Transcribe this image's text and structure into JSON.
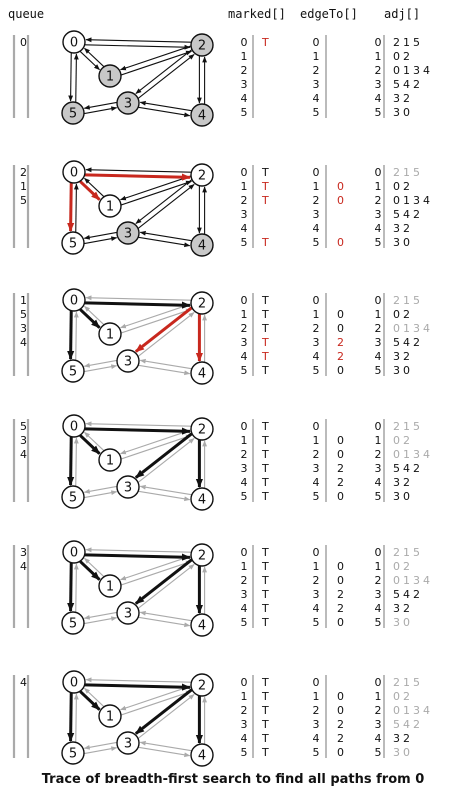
{
  "headers": {
    "queue": "queue",
    "marked": "marked[]",
    "edgeTo": "edgeTo[]",
    "adj": "adj[]"
  },
  "caption": "Trace of breadth-first search to find all paths from 0",
  "colors": {
    "black": "#111111",
    "gray": "#aaaaaa",
    "red": "#c8281e",
    "node_fill_gray": "#c8c8c8",
    "node_fill": "#ffffff"
  },
  "vertices": [
    "0",
    "1",
    "2",
    "3",
    "4",
    "5"
  ],
  "adj": [
    [
      "2",
      "1",
      "5"
    ],
    [
      "0",
      "2"
    ],
    [
      "0",
      "1",
      "3",
      "4"
    ],
    [
      "5",
      "4",
      "2"
    ],
    [
      "3",
      "2"
    ],
    [
      "3",
      "0"
    ]
  ],
  "steps": [
    {
      "queue": [
        "0"
      ],
      "marked": [
        "T",
        "",
        "",
        "",
        "",
        ""
      ],
      "marked_red": [
        true,
        false,
        false,
        false,
        false,
        false
      ],
      "edgeTo": [
        "",
        "",
        "",
        "",
        "",
        ""
      ],
      "edgeTo_red": [
        false,
        false,
        false,
        false,
        false,
        false
      ],
      "adj_gray": [
        false,
        false,
        false,
        false,
        false,
        false
      ],
      "gray_nodes": [
        "1",
        "2",
        "3",
        "5",
        "4"
      ],
      "tree_edges": [],
      "new_edges": []
    },
    {
      "queue": [
        "2",
        "1",
        "5"
      ],
      "marked": [
        "T",
        "T",
        "T",
        "",
        "",
        "T"
      ],
      "marked_red": [
        false,
        true,
        true,
        false,
        false,
        true
      ],
      "edgeTo": [
        "",
        "0",
        "0",
        "",
        "",
        "0"
      ],
      "edgeTo_red": [
        false,
        true,
        true,
        false,
        false,
        true
      ],
      "adj_gray": [
        true,
        false,
        false,
        false,
        false,
        false
      ],
      "gray_nodes": [
        "3",
        "4"
      ],
      "tree_edges": [],
      "new_edges": [
        [
          "0",
          "2"
        ],
        [
          "0",
          "1"
        ],
        [
          "0",
          "5"
        ]
      ]
    },
    {
      "queue": [
        "1",
        "5",
        "3",
        "4"
      ],
      "marked": [
        "T",
        "T",
        "T",
        "T",
        "T",
        "T"
      ],
      "marked_red": [
        false,
        false,
        false,
        true,
        true,
        false
      ],
      "edgeTo": [
        "",
        "0",
        "0",
        "2",
        "2",
        "0"
      ],
      "edgeTo_red": [
        false,
        false,
        false,
        true,
        true,
        false
      ],
      "adj_gray": [
        true,
        false,
        true,
        false,
        false,
        false
      ],
      "gray_nodes": [],
      "tree_edges": [
        [
          "0",
          "2"
        ],
        [
          "0",
          "1"
        ],
        [
          "0",
          "5"
        ]
      ],
      "new_edges": [
        [
          "2",
          "3"
        ],
        [
          "2",
          "4"
        ]
      ]
    },
    {
      "queue": [
        "5",
        "3",
        "4"
      ],
      "marked": [
        "T",
        "T",
        "T",
        "T",
        "T",
        "T"
      ],
      "marked_red": [
        false,
        false,
        false,
        false,
        false,
        false
      ],
      "edgeTo": [
        "",
        "0",
        "0",
        "2",
        "2",
        "0"
      ],
      "edgeTo_red": [
        false,
        false,
        false,
        false,
        false,
        false
      ],
      "adj_gray": [
        true,
        true,
        true,
        false,
        false,
        false
      ],
      "gray_nodes": [],
      "tree_edges": [
        [
          "0",
          "2"
        ],
        [
          "0",
          "1"
        ],
        [
          "0",
          "5"
        ],
        [
          "2",
          "3"
        ],
        [
          "2",
          "4"
        ]
      ],
      "new_edges": []
    },
    {
      "queue": [
        "3",
        "4"
      ],
      "marked": [
        "T",
        "T",
        "T",
        "T",
        "T",
        "T"
      ],
      "marked_red": [
        false,
        false,
        false,
        false,
        false,
        false
      ],
      "edgeTo": [
        "",
        "0",
        "0",
        "2",
        "2",
        "0"
      ],
      "edgeTo_red": [
        false,
        false,
        false,
        false,
        false,
        false
      ],
      "adj_gray": [
        true,
        true,
        true,
        false,
        false,
        true
      ],
      "gray_nodes": [],
      "tree_edges": [
        [
          "0",
          "2"
        ],
        [
          "0",
          "1"
        ],
        [
          "0",
          "5"
        ],
        [
          "2",
          "3"
        ],
        [
          "2",
          "4"
        ]
      ],
      "new_edges": []
    },
    {
      "queue": [
        "4"
      ],
      "marked": [
        "T",
        "T",
        "T",
        "T",
        "T",
        "T"
      ],
      "marked_red": [
        false,
        false,
        false,
        false,
        false,
        false
      ],
      "edgeTo": [
        "",
        "0",
        "0",
        "2",
        "2",
        "0"
      ],
      "edgeTo_red": [
        false,
        false,
        false,
        false,
        false,
        false
      ],
      "adj_gray": [
        true,
        true,
        true,
        true,
        false,
        true
      ],
      "gray_nodes": [],
      "tree_edges": [
        [
          "0",
          "2"
        ],
        [
          "0",
          "1"
        ],
        [
          "0",
          "5"
        ],
        [
          "2",
          "3"
        ],
        [
          "2",
          "4"
        ]
      ],
      "new_edges": []
    }
  ]
}
